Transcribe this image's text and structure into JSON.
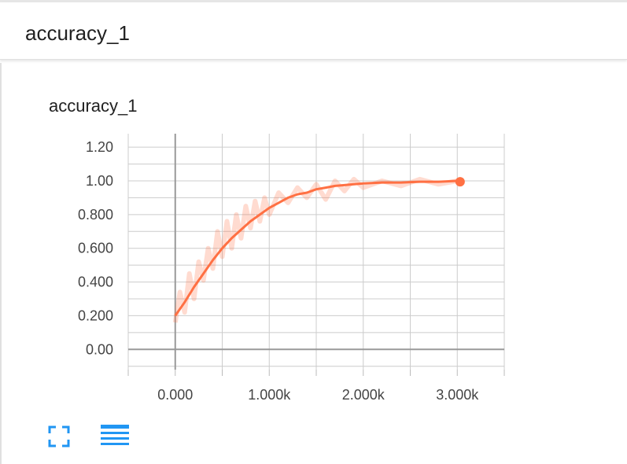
{
  "header": {
    "title": "accuracy_1"
  },
  "chart_data": {
    "type": "line",
    "title": "accuracy_1",
    "xlabel": "",
    "ylabel": "",
    "xlim": [
      -500,
      3500
    ],
    "ylim": [
      -0.12,
      1.28
    ],
    "x_ticks": [
      {
        "value": 0,
        "label": "0.000"
      },
      {
        "value": 1000,
        "label": "1.000k"
      },
      {
        "value": 2000,
        "label": "2.000k"
      },
      {
        "value": 3000,
        "label": "3.000k"
      }
    ],
    "y_ticks": [
      {
        "value": 0,
        "label": "0.00"
      },
      {
        "value": 0.2,
        "label": "0.200"
      },
      {
        "value": 0.4,
        "label": "0.400"
      },
      {
        "value": 0.6,
        "label": "0.600"
      },
      {
        "value": 0.8,
        "label": "0.800"
      },
      {
        "value": 1.0,
        "label": "1.00"
      },
      {
        "value": 1.2,
        "label": "1.20"
      }
    ],
    "grid": true,
    "series": [
      {
        "color": "#ff7043",
        "smoothed": {
          "x": [
            0,
            100,
            200,
            300,
            400,
            500,
            600,
            700,
            800,
            900,
            1000,
            1100,
            1200,
            1300,
            1400,
            1500,
            1600,
            1700,
            1800,
            1900,
            2000,
            2200,
            2400,
            2600,
            2800,
            3000
          ],
          "y": [
            0.2,
            0.28,
            0.37,
            0.45,
            0.53,
            0.6,
            0.66,
            0.71,
            0.76,
            0.8,
            0.84,
            0.87,
            0.9,
            0.92,
            0.93,
            0.95,
            0.96,
            0.97,
            0.975,
            0.98,
            0.985,
            0.99,
            0.99,
            0.995,
            0.995,
            1.0
          ]
        },
        "raw": {
          "x": [
            0,
            50,
            100,
            150,
            200,
            250,
            300,
            350,
            400,
            450,
            500,
            550,
            600,
            650,
            700,
            750,
            800,
            850,
            900,
            950,
            1000,
            1100,
            1200,
            1300,
            1400,
            1500,
            1600,
            1700,
            1800,
            1900,
            2000,
            2200,
            2400,
            2600,
            2800,
            3000
          ],
          "y": [
            0.16,
            0.34,
            0.22,
            0.45,
            0.3,
            0.52,
            0.41,
            0.6,
            0.48,
            0.7,
            0.55,
            0.76,
            0.6,
            0.8,
            0.66,
            0.85,
            0.72,
            0.88,
            0.76,
            0.9,
            0.8,
            0.93,
            0.87,
            0.96,
            0.9,
            0.98,
            0.89,
            1.0,
            0.94,
            1.01,
            0.96,
            1.0,
            0.97,
            1.01,
            0.98,
            1.0
          ]
        },
        "last_point": {
          "x": 3030,
          "y": 0.995
        }
      }
    ]
  },
  "icons": {
    "fullscreen": "fullscreen-icon",
    "menu": "menu-icon",
    "accent": "#2196f3"
  }
}
